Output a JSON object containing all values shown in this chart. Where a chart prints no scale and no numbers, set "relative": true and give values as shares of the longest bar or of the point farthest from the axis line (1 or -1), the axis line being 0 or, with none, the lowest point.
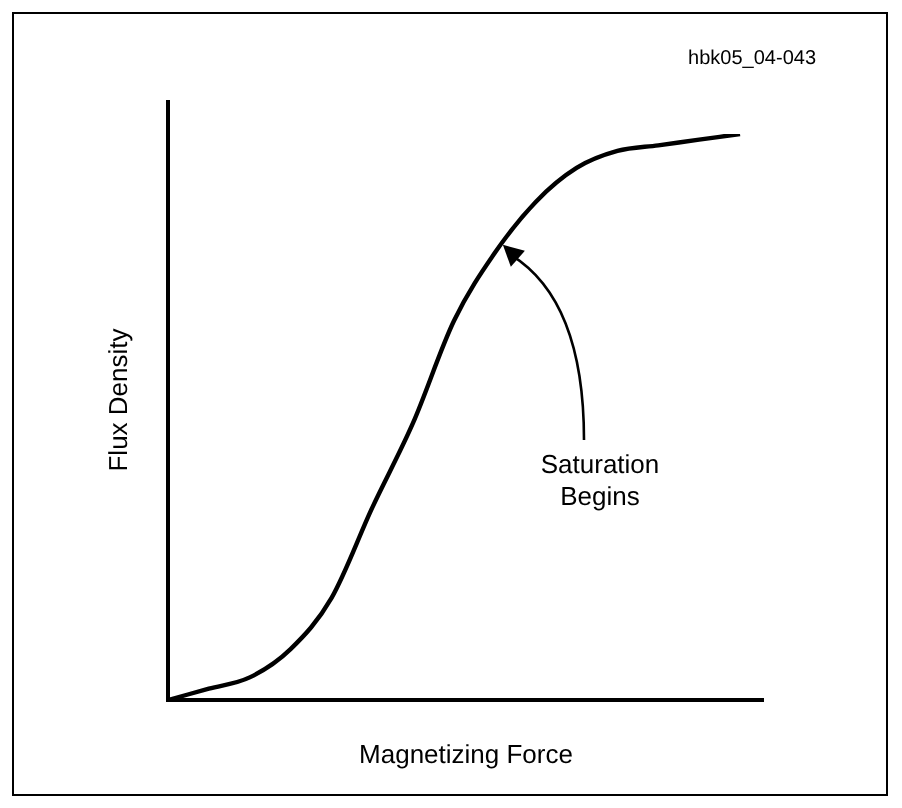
{
  "chart_data": {
    "type": "line",
    "relative": true,
    "xlabel": "Magnetizing Force",
    "ylabel": "Flux Density",
    "annotations": [
      "hbk05_04-043",
      "Saturation Begins"
    ],
    "categories": [
      null,
      null,
      null,
      null,
      null,
      null,
      null,
      null,
      null,
      null,
      null,
      null,
      null,
      null,
      null
    ],
    "series": [
      {
        "color": "#000000",
        "values": [
          0,
          0.02,
          0.04,
          0.09,
          0.18,
          0.34,
          0.49,
          0.67,
          0.79,
          0.88,
          0.94,
          0.97,
          0.98,
          0.99,
          1
        ]
      }
    ],
    "legend": false,
    "marker": "none",
    "line_style": "solid"
  }
}
